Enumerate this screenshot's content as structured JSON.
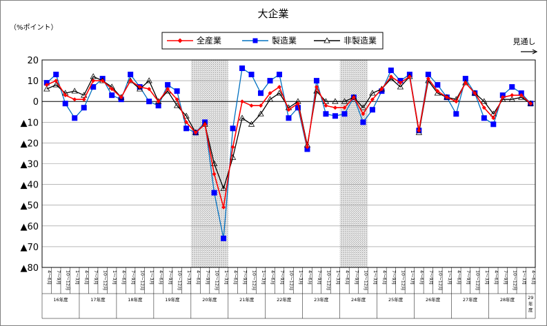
{
  "chart_data": {
    "type": "line",
    "title": "大企業",
    "y_unit_label": "（%ポイント）",
    "forecast_label": "見通し",
    "ylim": [
      -80,
      20
    ],
    "y_ticks": [
      20,
      10,
      0,
      -10,
      -20,
      -30,
      -40,
      -50,
      -60,
      -70,
      -80
    ],
    "y_tick_labels": [
      "20",
      "10",
      "0",
      "▲10",
      "▲20",
      "▲30",
      "▲40",
      "▲50",
      "▲60",
      "▲70",
      "▲80"
    ],
    "grid": true,
    "legend_position": "top",
    "categories": [
      "4～6月",
      "7～9月",
      "10～12月",
      "1～3月",
      "4～6月",
      "7～9月",
      "10～12月",
      "1～3月",
      "4～6月",
      "7～9月",
      "10～12月",
      "1～3月",
      "4～6月",
      "7～9月",
      "10～12月",
      "1～3月",
      "4～6月",
      "7～9月",
      "10～12月",
      "1～3月",
      "4～6月",
      "7～9月",
      "10～12月",
      "1～3月",
      "4～6月",
      "7～9月",
      "10～12月",
      "1～3月",
      "4～6月",
      "7～9月",
      "10～12月",
      "1～3月",
      "4～6月",
      "7～9月",
      "10～12月",
      "1～3月",
      "4～6月",
      "7～9月",
      "10～12月",
      "1～3月",
      "4～6月",
      "7～9月",
      "10～12月",
      "1～3月",
      "4～6月",
      "7～9月",
      "10～12月",
      "1～3月",
      "4～6月",
      "7～9月",
      "10～12月",
      "1～3月",
      "4～6月"
    ],
    "fiscal_years": [
      {
        "label": "16年度",
        "start": 0,
        "count": 4
      },
      {
        "label": "17年度",
        "start": 4,
        "count": 4
      },
      {
        "label": "18年度",
        "start": 8,
        "count": 4
      },
      {
        "label": "19年度",
        "start": 12,
        "count": 4
      },
      {
        "label": "20年度",
        "start": 16,
        "count": 4
      },
      {
        "label": "21年度",
        "start": 20,
        "count": 4
      },
      {
        "label": "22年度",
        "start": 24,
        "count": 4
      },
      {
        "label": "23年度",
        "start": 28,
        "count": 4
      },
      {
        "label": "24年度",
        "start": 32,
        "count": 4
      },
      {
        "label": "25年度",
        "start": 36,
        "count": 4
      },
      {
        "label": "26年度",
        "start": 40,
        "count": 4
      },
      {
        "label": "27年度",
        "start": 44,
        "count": 4
      },
      {
        "label": "28年度",
        "start": 48,
        "count": 4
      },
      {
        "label": "29年度",
        "start": 52,
        "count": 1
      }
    ],
    "shaded_ranges": [
      [
        16,
        19
      ],
      [
        32,
        34
      ]
    ],
    "series": [
      {
        "name": "全産業",
        "color": "#ff0000",
        "marker": "diamond",
        "values": [
          8,
          10,
          3,
          1,
          1,
          10,
          10,
          6,
          2,
          10,
          7,
          6,
          0,
          6,
          1,
          -10,
          -15,
          -11,
          -35,
          -51,
          -22,
          0,
          -2,
          -2,
          4,
          7,
          -4,
          -1,
          -22,
          7,
          -2,
          -3,
          -3,
          2,
          -6,
          1,
          6,
          12,
          9,
          12,
          -14,
          11,
          5,
          2,
          0,
          9,
          4,
          -3,
          -8,
          2,
          3,
          3,
          -1
        ]
      },
      {
        "name": "製造業",
        "color": "#0070c0",
        "marker": "square",
        "values": [
          9,
          13,
          -1,
          -8,
          -3,
          7,
          11,
          3,
          1,
          13,
          7,
          0,
          -2,
          8,
          5,
          -13,
          -15,
          -10,
          -44,
          -66,
          -13,
          16,
          13,
          4,
          10,
          13,
          -8,
          -3,
          -23,
          10,
          -6,
          -7,
          -6,
          2,
          -10,
          -4,
          5,
          15,
          10,
          13,
          -14,
          13,
          8,
          2,
          -6,
          11,
          4,
          -8,
          -11,
          3,
          7,
          4,
          -1
        ]
      },
      {
        "name": "非製造業",
        "color": "#000000",
        "marker": "triangle",
        "values": [
          6,
          8,
          4,
          5,
          3,
          12,
          10,
          7,
          2,
          10,
          6,
          10,
          0,
          5,
          -2,
          -7,
          -15,
          -11,
          -30,
          -42,
          -27,
          -8,
          -11,
          -6,
          1,
          4,
          -3,
          0,
          -21,
          5,
          0,
          0,
          0,
          2,
          -3,
          4,
          6,
          11,
          7,
          12,
          -15,
          10,
          4,
          2,
          1,
          9,
          4,
          0,
          -6,
          1,
          1,
          2,
          -1
        ]
      }
    ]
  }
}
